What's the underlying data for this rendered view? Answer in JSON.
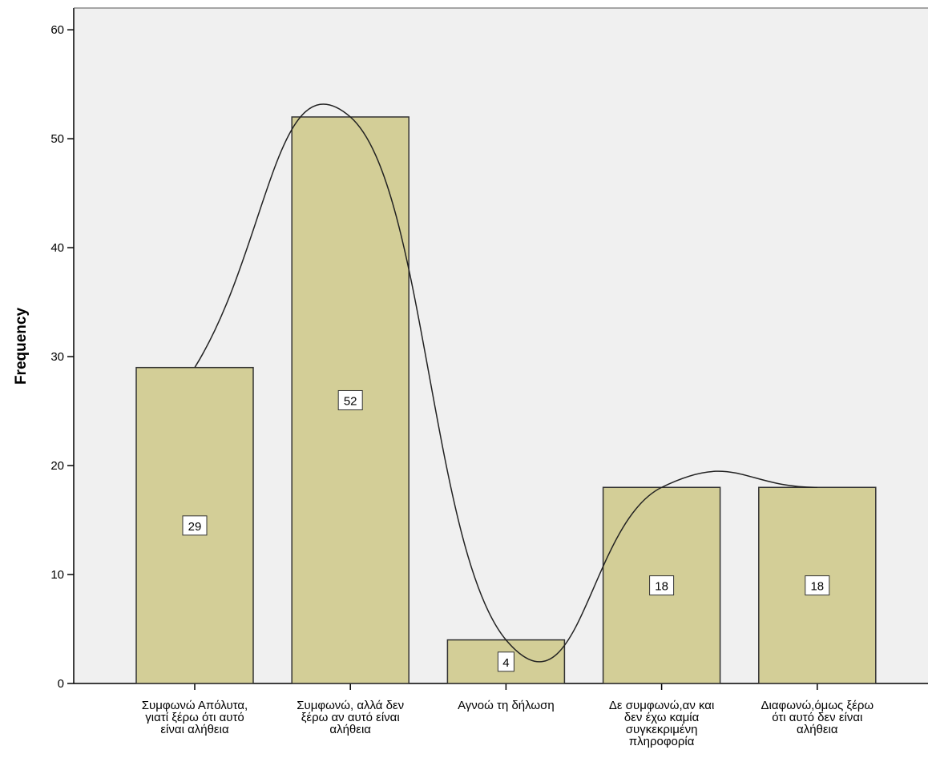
{
  "chart_data": {
    "type": "bar",
    "categories": [
      [
        "Συμφωνώ Απόλυτα,",
        "γιατί ξέρω ότι αυτό",
        "είναι αλήθεια"
      ],
      [
        "Συμφωνώ, αλλά δεν",
        "ξέρω αν αυτό είναι",
        "αλήθεια"
      ],
      [
        "Αγνοώ τη δήλωση"
      ],
      [
        "Δε συμφωνώ,αν και",
        "δεν έχω καμία",
        "συγκεκριμένη",
        "πληροφορία"
      ],
      [
        "Διαφωνώ,όμως ξέρω",
        "ότι αυτό δεν είναι",
        "αλήθεια"
      ]
    ],
    "values": [
      29,
      52,
      4,
      18,
      18
    ],
    "data_labels": [
      "29",
      "52",
      "4",
      "18",
      "18"
    ],
    "ylabel": "Frequency",
    "ylim": [
      0,
      62
    ],
    "yticks": [
      0,
      10,
      20,
      30,
      40,
      50,
      60
    ],
    "ytick_labels": [
      "0",
      "10",
      "20",
      "30",
      "40",
      "50",
      "60"
    ],
    "curve": "normal-fit",
    "grid": false,
    "colors": {
      "plot_background": "#f0f0f0",
      "bar_fill": "#d3ce97",
      "bar_stroke": "#333333",
      "curve": "#222222",
      "axis": "#000000"
    }
  }
}
